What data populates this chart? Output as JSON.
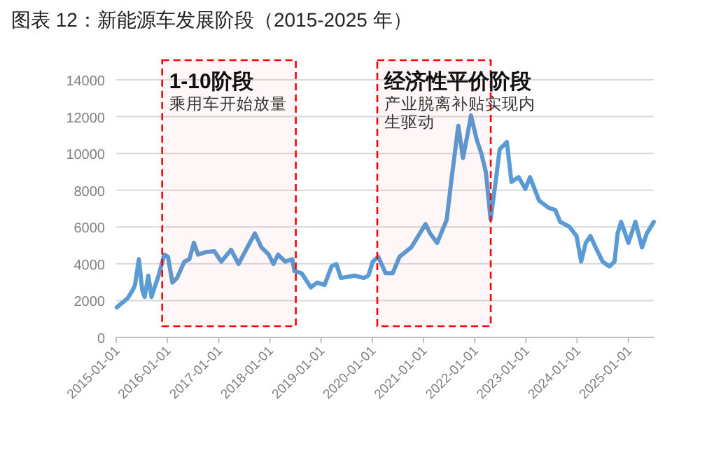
{
  "chart_data": {
    "type": "line",
    "title": "图表 12：新能源车发展阶段（2015-2025 年）",
    "x": [
      "2015-01-05",
      "2015-03-25",
      "2015-05-01",
      "2015-05-15",
      "2015-06-12",
      "2015-07-05",
      "2015-07-23",
      "2015-08-18",
      "2015-09-10",
      "2015-10-30",
      "2015-12-10",
      "2016-01-05",
      "2016-02-06",
      "2016-03-10",
      "2016-05-01",
      "2016-06-06",
      "2016-07-08",
      "2016-08-07",
      "2016-09-27",
      "2016-12-01",
      "2017-01-20",
      "2017-03-30",
      "2017-05-23",
      "2017-07-24",
      "2017-09-16",
      "2017-11-02",
      "2017-12-24",
      "2018-01-26",
      "2018-02-28",
      "2018-04-20",
      "2018-06-10",
      "2018-06-25",
      "2018-08-15",
      "2018-10-20",
      "2018-12-05",
      "2019-01-26",
      "2019-03-17",
      "2019-04-20",
      "2019-05-23",
      "2019-08-28",
      "2019-11-02",
      "2019-12-05",
      "2020-01-05",
      "2020-02-13",
      "2020-04-05",
      "2020-05-26",
      "2020-07-13",
      "2020-10-05",
      "2021-01-15",
      "2021-02-17",
      "2021-04-08",
      "2021-06-15",
      "2021-07-17",
      "2021-09-06",
      "2021-10-09",
      "2021-11-10",
      "2021-12-05",
      "2022-01-15",
      "2022-02-17",
      "2022-03-22",
      "2022-04-24",
      "2022-05-30",
      "2022-06-28",
      "2022-08-18",
      "2022-09-20",
      "2022-11-10",
      "2022-12-28",
      "2023-01-30",
      "2023-04-05",
      "2023-06-10",
      "2023-07-30",
      "2023-09-02",
      "2023-11-06",
      "2023-12-28",
      "2024-01-30",
      "2024-03-03",
      "2024-04-05",
      "2024-05-12",
      "2024-07-01",
      "2024-08-18",
      "2024-09-24",
      "2024-10-16",
      "2024-11-10",
      "2025-01-01",
      "2025-02-20",
      "2025-04-08",
      "2025-05-12",
      "2025-07-01"
    ],
    "series": [
      {
        "color": "#5b9bd5",
        "values": [
          1630,
          2140,
          2600,
          2850,
          4250,
          2600,
          2200,
          3360,
          2200,
          3360,
          4500,
          4380,
          2980,
          3230,
          4120,
          4250,
          5140,
          4500,
          4630,
          4680,
          4120,
          4760,
          3990,
          4890,
          5650,
          4890,
          4500,
          3990,
          4500,
          4120,
          4250,
          3610,
          3490,
          2720,
          2980,
          2850,
          3860,
          3990,
          3230,
          3360,
          3230,
          3360,
          4120,
          4380,
          3490,
          3490,
          4380,
          4890,
          6160,
          5650,
          5140,
          6400,
          8450,
          11500,
          9750,
          11000,
          12060,
          10750,
          10000,
          8960,
          6410,
          8450,
          10230,
          10620,
          8450,
          8710,
          8070,
          8710,
          7430,
          7050,
          6920,
          6280,
          6020,
          5510,
          4120,
          5140,
          5510,
          4890,
          4120,
          3860,
          4120,
          5650,
          6280,
          5140,
          6280,
          4890,
          5650,
          6280
        ]
      }
    ],
    "xlim": [
      "2015-01-01",
      "2025-07-01"
    ],
    "xticks": [
      {
        "value": "2015-01-01",
        "label": "2015-01-01"
      },
      {
        "value": "2016-01-01",
        "label": "2016-01-01"
      },
      {
        "value": "2017-01-01",
        "label": "2017-01-01"
      },
      {
        "value": "2018-01-01",
        "label": "2018-01-01"
      },
      {
        "value": "2019-01-01",
        "label": "2019-01-01"
      },
      {
        "value": "2020-01-01",
        "label": "2020-01-01"
      },
      {
        "value": "2021-01-01",
        "label": "2021-01-01"
      },
      {
        "value": "2022-01-01",
        "label": "2022-01-01"
      },
      {
        "value": "2023-01-01",
        "label": "2023-01-01"
      },
      {
        "value": "2024-01-01",
        "label": "2024-01-01"
      },
      {
        "value": "2025-01-01",
        "label": "2025-01-01"
      }
    ],
    "ylim": [
      0,
      14000
    ],
    "yticks": [
      0,
      2000,
      4000,
      6000,
      8000,
      10000,
      12000,
      14000
    ],
    "grid": "y",
    "marker": "none",
    "line_style": "solid",
    "bands": [
      {
        "axis": "x",
        "from": "2015-11-25",
        "to": "2018-07-05",
        "label": "1-10阶段",
        "color": "#ff0000"
      },
      {
        "axis": "x",
        "from": "2020-02-06",
        "to": "2022-04-25",
        "label": "经济性平价阶段",
        "color": "#ff0000"
      }
    ],
    "annotations": [
      "乘用车开始放量",
      "产业脱离补贴实现内生驱动"
    ]
  }
}
